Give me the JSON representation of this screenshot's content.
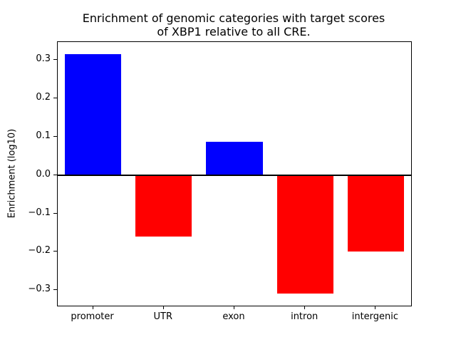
{
  "figure": {
    "title_line1": "Enrichment of genomic categories with target scores",
    "title_line2": "of XBP1 relative to all CRE."
  },
  "chart_data": {
    "type": "bar",
    "title": "Enrichment of genomic categories with target scores of XBP1 relative to all CRE.",
    "xlabel": "",
    "ylabel": "Enrichment (log10)",
    "categories": [
      "promoter",
      "UTR",
      "exon",
      "intron",
      "intergenic"
    ],
    "values": [
      0.315,
      -0.16,
      0.086,
      -0.308,
      -0.2
    ],
    "ylim": [
      -0.34,
      0.346
    ],
    "yticks": [
      {
        "value": -0.3,
        "label": "−0.3"
      },
      {
        "value": -0.2,
        "label": "−0.2"
      },
      {
        "value": -0.1,
        "label": "−0.1"
      },
      {
        "value": 0.0,
        "label": "0.0"
      },
      {
        "value": 0.1,
        "label": "0.1"
      },
      {
        "value": 0.2,
        "label": "0.2"
      },
      {
        "value": 0.3,
        "label": "0.3"
      }
    ],
    "positive_color": "#0000ff",
    "negative_color": "#ff0000",
    "zero_line_color": "#000000",
    "bar_width_fraction": 0.8,
    "grid": false,
    "legend": "none"
  }
}
